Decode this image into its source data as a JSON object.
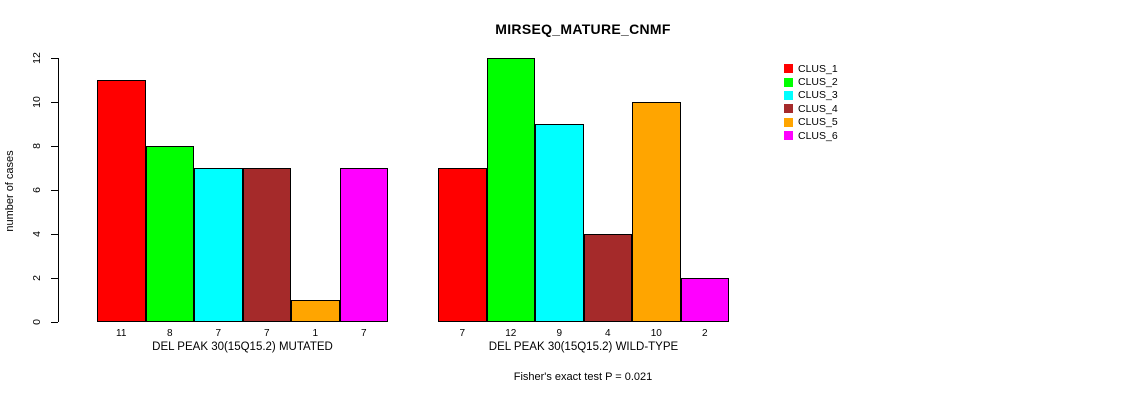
{
  "chart_data": {
    "type": "bar",
    "title": "MIRSEQ_MATURE_CNMF",
    "ylabel": "number of cases",
    "xlabel": "",
    "ylim": [
      0,
      12
    ],
    "yticks": [
      0,
      2,
      4,
      6,
      8,
      10,
      12
    ],
    "grid": false,
    "legend_position": "right",
    "categories": [
      "DEL PEAK 30(15Q15.2) MUTATED",
      "DEL PEAK 30(15Q15.2) WILD-TYPE"
    ],
    "series": [
      {
        "name": "CLUS_1",
        "color": "#FF0000",
        "values": [
          11,
          7
        ]
      },
      {
        "name": "CLUS_2",
        "color": "#00FF00",
        "values": [
          8,
          12
        ]
      },
      {
        "name": "CLUS_3",
        "color": "#00FFFF",
        "values": [
          7,
          9
        ]
      },
      {
        "name": "CLUS_4",
        "color": "#A52A2A",
        "values": [
          7,
          4
        ]
      },
      {
        "name": "CLUS_5",
        "color": "#FFA500",
        "values": [
          1,
          10
        ]
      },
      {
        "name": "CLUS_6",
        "color": "#FF00FF",
        "values": [
          7,
          2
        ]
      }
    ],
    "annotation": "Fisher's exact test P = 0.021",
    "axis_color": "#000000",
    "background_color": "#FFFFFF"
  }
}
